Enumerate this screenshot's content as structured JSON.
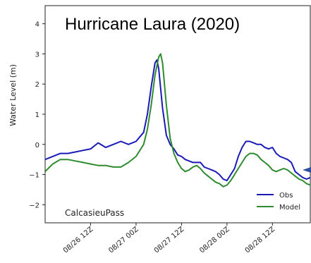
{
  "chart_data": {
    "type": "line",
    "title": "Hurricane Laura (2020)",
    "station": "CalcasieuPass",
    "ylabel": "Water Level (m)",
    "xlabel": "",
    "x_unit": "hours since 08/26 00Z",
    "xlim": [
      0,
      70
    ],
    "ylim": [
      -2.6,
      4.6
    ],
    "yticks": [
      -2,
      -1,
      0,
      1,
      2,
      3,
      4
    ],
    "ytick_labels": [
      "−2",
      "−1",
      "0",
      "1",
      "2",
      "3",
      "4"
    ],
    "xticks": [
      12,
      24,
      36,
      48,
      60
    ],
    "xtick_labels": [
      "08/26 12Z",
      "08/27 00Z",
      "08/27 12Z",
      "08/28 00Z",
      "08/28 12Z"
    ],
    "legend": {
      "placement": "bottom-right"
    },
    "series": [
      {
        "name": "Obs",
        "color": "#1a1ab8",
        "x": [
          0,
          2,
          4,
          6,
          8,
          10,
          12,
          14,
          16,
          18,
          20,
          22,
          24,
          26,
          27,
          28,
          29,
          29.5,
          30,
          31,
          32,
          33,
          34,
          35,
          36,
          37,
          38,
          39,
          40,
          41,
          42,
          43,
          44,
          45,
          46,
          47,
          48,
          49,
          50,
          51,
          52,
          53,
          54,
          55,
          56,
          57,
          58,
          59,
          60,
          61,
          62,
          63,
          64,
          65,
          66,
          67,
          68,
          69,
          70
        ],
        "y": [
          -0.5,
          -0.4,
          -0.3,
          -0.3,
          -0.25,
          -0.2,
          -0.15,
          0.05,
          -0.1,
          0.0,
          0.1,
          0.0,
          0.1,
          0.4,
          1.0,
          1.9,
          2.7,
          2.8,
          2.5,
          1.2,
          0.3,
          0.0,
          -0.15,
          -0.35,
          -0.4,
          -0.5,
          -0.55,
          -0.6,
          -0.6,
          -0.6,
          -0.75,
          -0.8,
          -0.85,
          -0.9,
          -1.0,
          -1.15,
          -1.2,
          -1.0,
          -0.8,
          -0.4,
          -0.1,
          0.1,
          0.1,
          0.05,
          0.0,
          0.0,
          -0.1,
          -0.15,
          -0.1,
          -0.3,
          -0.4,
          -0.45,
          -0.5,
          -0.6,
          -0.9,
          -1.0,
          -1.1,
          -1.15,
          -1.1
        ]
      },
      {
        "name": "Model",
        "color": "#2e8b2e",
        "x": [
          0,
          2,
          4,
          6,
          8,
          10,
          12,
          14,
          16,
          18,
          20,
          22,
          24,
          26,
          27,
          28,
          29,
          30,
          30.5,
          31,
          32,
          33,
          34,
          35,
          36,
          37,
          38,
          39,
          40,
          41,
          42,
          43,
          44,
          45,
          46,
          47,
          48,
          49,
          50,
          51,
          52,
          53,
          54,
          55,
          56,
          57,
          58,
          59,
          60,
          61,
          62,
          63,
          64,
          65,
          66,
          67,
          68,
          69,
          70
        ],
        "y": [
          -0.9,
          -0.65,
          -0.5,
          -0.5,
          -0.55,
          -0.6,
          -0.65,
          -0.7,
          -0.7,
          -0.75,
          -0.75,
          -0.6,
          -0.4,
          0.0,
          0.5,
          1.3,
          2.3,
          2.9,
          3.0,
          2.7,
          1.3,
          0.2,
          -0.3,
          -0.6,
          -0.8,
          -0.9,
          -0.85,
          -0.75,
          -0.7,
          -0.8,
          -0.95,
          -1.05,
          -1.15,
          -1.25,
          -1.3,
          -1.4,
          -1.35,
          -1.2,
          -1.0,
          -0.8,
          -0.6,
          -0.4,
          -0.3,
          -0.3,
          -0.35,
          -0.5,
          -0.6,
          -0.7,
          -0.85,
          -0.9,
          -0.85,
          -0.8,
          -0.85,
          -0.95,
          -1.05,
          -1.15,
          -1.2,
          -1.3,
          -1.35
        ]
      }
    ]
  }
}
